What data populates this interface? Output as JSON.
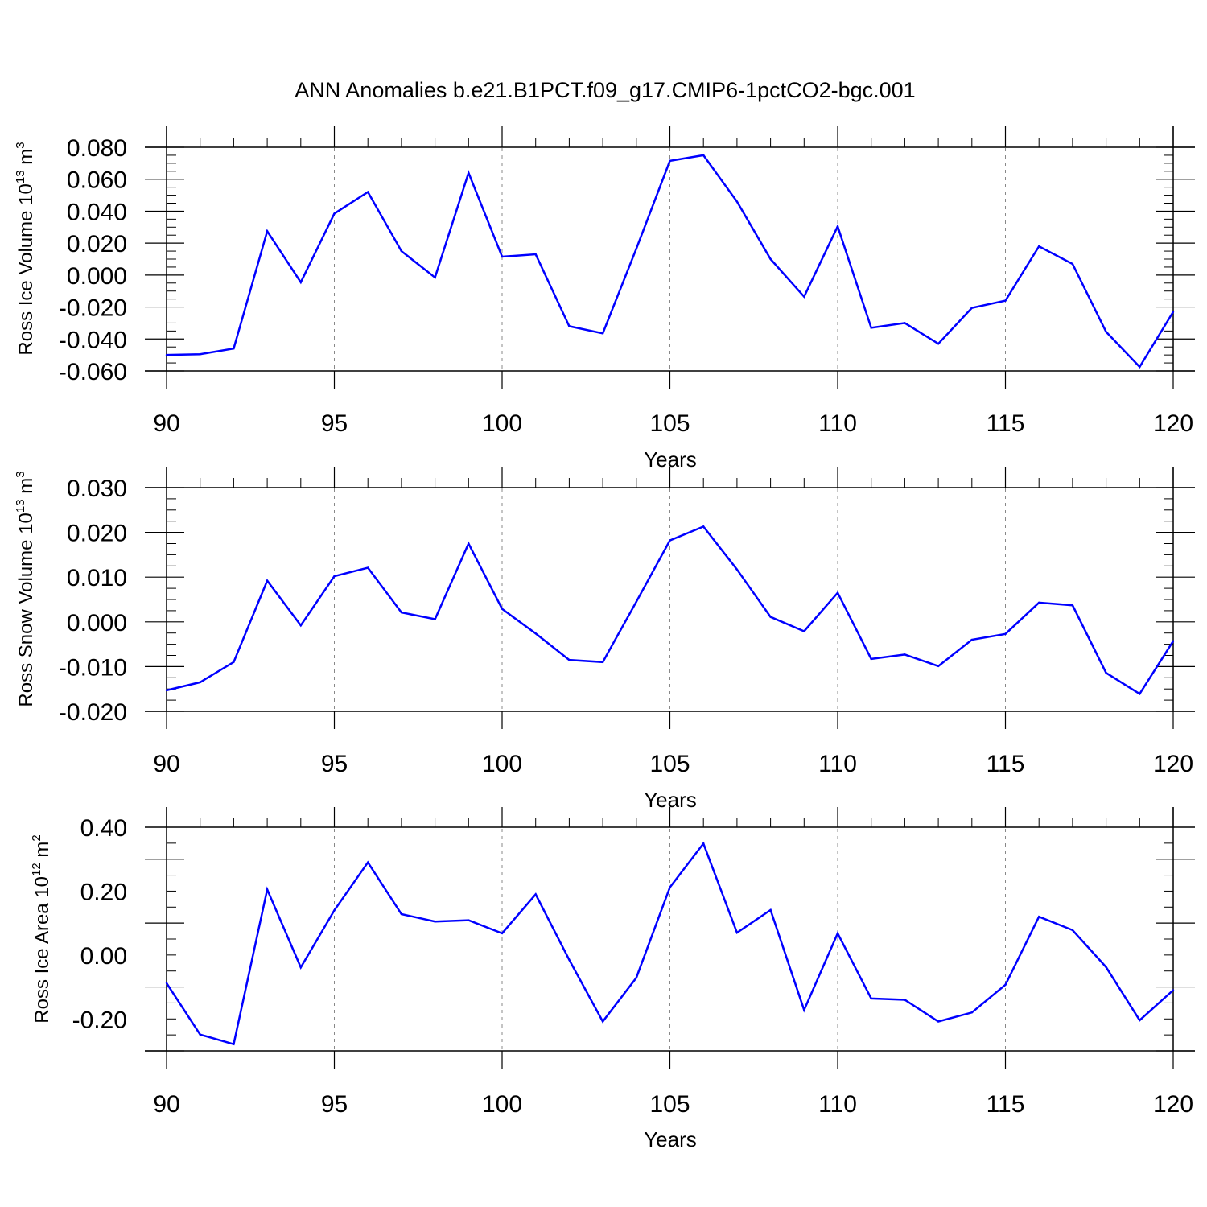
{
  "title": "ANN Anomalies b.e21.B1PCT.f09_g17.CMIP6-1pctCO2-bgc.001",
  "colors": {
    "line": "#0000ff",
    "axis": "#000000",
    "grid": "#888888"
  },
  "chart_data": [
    {
      "type": "line",
      "ylabel": {
        "text": "Ross Ice Volume 10",
        "exponent": "13",
        "unit": "m",
        "unit_exponent": "3"
      },
      "xlabel": "Years",
      "xlim": [
        90,
        120
      ],
      "ylim": [
        -0.06,
        0.08
      ],
      "xticks": [
        90,
        95,
        100,
        105,
        110,
        115,
        120
      ],
      "xtick_labels": [
        "90",
        "95",
        "100",
        "105",
        "110",
        "115",
        "120"
      ],
      "yticks": [
        -0.06,
        -0.04,
        -0.02,
        0.0,
        0.02,
        0.04,
        0.06,
        0.08
      ],
      "ytick_labels": [
        "-0.060",
        "-0.040",
        "-0.020",
        "0.000",
        "0.020",
        "0.040",
        "0.060",
        "0.080"
      ],
      "grid": "vertical dashed at major x ticks",
      "x": [
        90,
        91,
        92,
        93,
        94,
        95,
        96,
        97,
        98,
        99,
        100,
        101,
        102,
        103,
        104,
        105,
        106,
        107,
        108,
        109,
        110,
        111,
        112,
        113,
        114,
        115,
        116,
        117,
        118,
        119,
        120
      ],
      "values": [
        -0.05,
        -0.0495,
        -0.046,
        0.0275,
        -0.0045,
        0.0385,
        0.052,
        0.015,
        -0.0015,
        0.064,
        0.0115,
        0.013,
        -0.032,
        -0.0365,
        0.0165,
        0.0715,
        0.075,
        0.046,
        0.01,
        -0.0135,
        0.0305,
        -0.033,
        -0.03,
        -0.043,
        -0.0205,
        -0.016,
        0.018,
        0.007,
        -0.0355,
        -0.0575,
        -0.023
      ]
    },
    {
      "type": "line",
      "ylabel": {
        "text": "Ross Snow Volume 10",
        "exponent": "13",
        "unit": "m",
        "unit_exponent": "3"
      },
      "xlabel": "Years",
      "xlim": [
        90,
        120
      ],
      "ylim": [
        -0.02,
        0.03
      ],
      "xticks": [
        90,
        95,
        100,
        105,
        110,
        115,
        120
      ],
      "xtick_labels": [
        "90",
        "95",
        "100",
        "105",
        "110",
        "115",
        "120"
      ],
      "yticks": [
        -0.02,
        -0.01,
        0.0,
        0.01,
        0.02,
        0.03
      ],
      "ytick_labels": [
        "-0.020",
        "-0.010",
        "0.000",
        "0.010",
        "0.020",
        "0.030"
      ],
      "grid": "vertical dashed at major x ticks",
      "x": [
        90,
        91,
        92,
        93,
        94,
        95,
        96,
        97,
        98,
        99,
        100,
        101,
        102,
        103,
        104,
        105,
        106,
        107,
        108,
        109,
        110,
        111,
        112,
        113,
        114,
        115,
        116,
        117,
        118,
        119,
        120
      ],
      "values": [
        -0.0153,
        -0.0135,
        -0.009,
        0.0092,
        -0.0008,
        0.0102,
        0.0121,
        0.0021,
        0.0006,
        0.0175,
        0.0029,
        -0.0026,
        -0.0085,
        -0.009,
        0.0045,
        0.0182,
        0.0213,
        0.0117,
        0.0011,
        -0.0021,
        0.0065,
        -0.0083,
        -0.0073,
        -0.0099,
        -0.004,
        -0.0027,
        0.0043,
        0.0037,
        -0.0114,
        -0.0161,
        -0.0043
      ]
    },
    {
      "type": "line",
      "ylabel": {
        "text": "Ross Ice Area 10",
        "exponent": "12",
        "unit": "m",
        "unit_exponent": "2"
      },
      "xlabel": "Years",
      "xlim": [
        90,
        120
      ],
      "ylim": [
        -0.3,
        0.4
      ],
      "xticks": [
        90,
        95,
        100,
        105,
        110,
        115,
        120
      ],
      "xtick_labels": [
        "90",
        "95",
        "100",
        "105",
        "110",
        "115",
        "120"
      ],
      "yticks": [
        -0.2,
        0.0,
        0.2,
        0.4
      ],
      "ytick_labels": [
        "-0.20",
        "0.00",
        "0.20",
        "0.40"
      ],
      "grid": "vertical dashed at major x ticks",
      "x": [
        90,
        91,
        92,
        93,
        94,
        95,
        96,
        97,
        98,
        99,
        100,
        101,
        102,
        103,
        104,
        105,
        106,
        107,
        108,
        109,
        110,
        111,
        112,
        113,
        114,
        115,
        116,
        117,
        118,
        119,
        120
      ],
      "values": [
        -0.088,
        -0.249,
        -0.279,
        0.205,
        -0.039,
        0.14,
        0.29,
        0.128,
        0.105,
        0.109,
        0.068,
        0.19,
        -0.015,
        -0.208,
        -0.071,
        0.212,
        0.349,
        0.07,
        0.141,
        -0.172,
        0.068,
        -0.136,
        -0.14,
        -0.208,
        -0.18,
        -0.093,
        0.12,
        0.078,
        -0.038,
        -0.204,
        -0.11
      ]
    }
  ]
}
